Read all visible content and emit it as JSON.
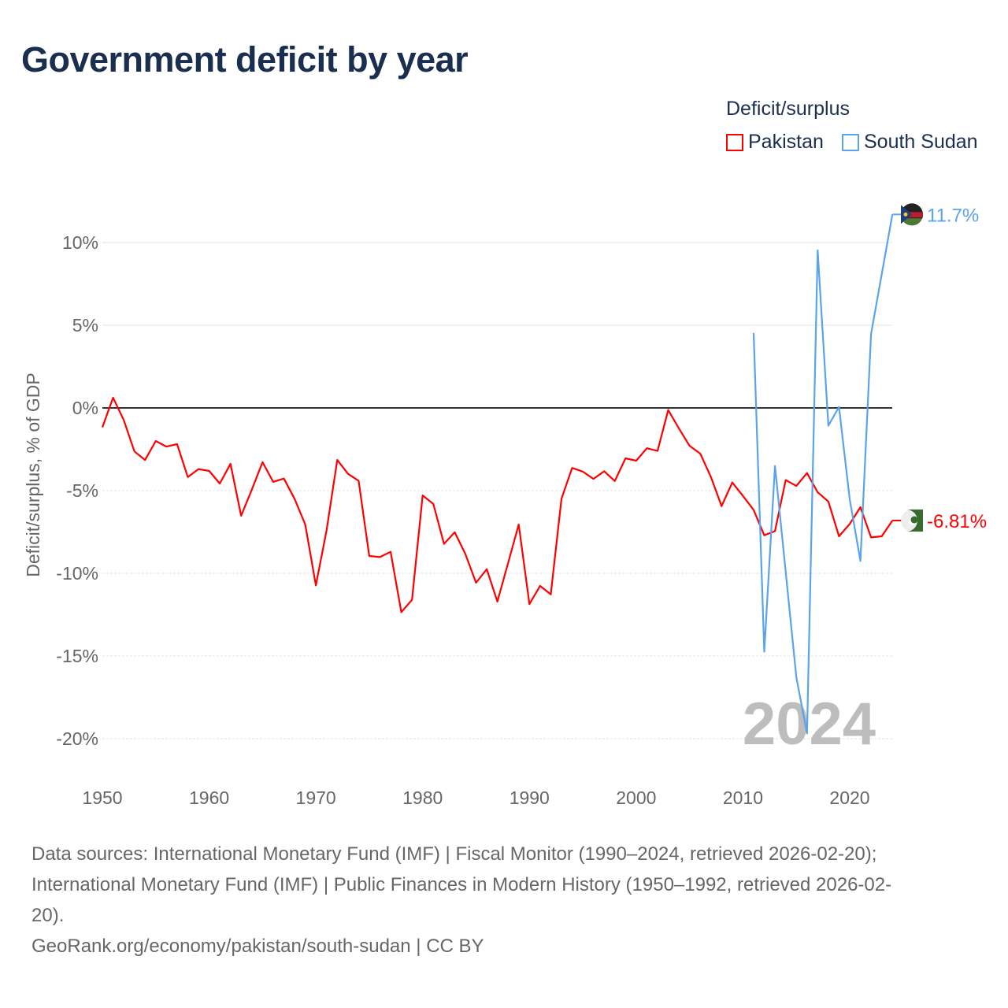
{
  "title": "Government deficit by year",
  "legend": {
    "title": "Deficit/surplus",
    "items": [
      {
        "name": "Pakistan",
        "color": "#ff0000"
      },
      {
        "name": "South Sudan",
        "color": "#5ba3ea"
      }
    ]
  },
  "year_label": "2024",
  "footer": {
    "line1": "Data sources: International Monetary Fund (IMF) | Fiscal Monitor (1990–2024, retrieved 2026-02-20);",
    "line2": "International Monetary Fund (IMF) | Public Finances in Modern History (1950–1992, retrieved 2026-02-",
    "line3": "20).",
    "line4": "GeoRank.org/economy/pakistan/south-sudan | CC BY"
  },
  "chart_data": {
    "type": "line",
    "title": "Government deficit by year",
    "xlabel": "",
    "ylabel": "Deficit/surplus, % of GDP",
    "xlim": [
      1950,
      2024
    ],
    "ylim": [
      -20,
      12
    ],
    "xticks": [
      1950,
      1960,
      1970,
      1980,
      1990,
      2000,
      2010,
      2020
    ],
    "xtick_labels": [
      "1950",
      "1960",
      "1970",
      "1980",
      "1990",
      "2000",
      "2010",
      "2020"
    ],
    "yticks": [
      10,
      5,
      0,
      -5,
      -10,
      -15,
      -20
    ],
    "ytick_labels": [
      "10%",
      "5%",
      "0%",
      "-5%",
      "-10%",
      "-15%",
      "-20%"
    ],
    "grid": true,
    "legend_position": "top-right",
    "series": [
      {
        "name": "Pakistan",
        "color": "#ff0000",
        "end_label": "-6.81%",
        "start_year": 1950,
        "values": [
          -1.17,
          0.62,
          -0.73,
          -2.63,
          -3.15,
          -2.0,
          -2.34,
          -2.19,
          -4.18,
          -3.7,
          -3.81,
          -4.57,
          -3.38,
          -6.52,
          -4.94,
          -3.28,
          -4.47,
          -4.27,
          -5.49,
          -7.05,
          -10.73,
          -7.4,
          -3.15,
          -3.98,
          -4.41,
          -8.95,
          -9.02,
          -8.7,
          -12.35,
          -11.6,
          -5.29,
          -5.81,
          -8.22,
          -7.52,
          -8.83,
          -10.57,
          -9.75,
          -11.71,
          -9.38,
          -7.05,
          -11.86,
          -10.76,
          -11.27,
          -5.49,
          -3.63,
          -3.85,
          -4.29,
          -3.83,
          -4.42,
          -3.05,
          -3.19,
          -2.44,
          -2.6,
          -0.13,
          -1.24,
          -2.29,
          -2.76,
          -4.18,
          -5.94,
          -4.51,
          -5.32,
          -6.17,
          -7.7,
          -7.45,
          -4.36,
          -4.72,
          -3.94,
          -5.1,
          -5.66,
          -7.76,
          -7.02,
          -6.0,
          -7.83,
          -7.76,
          -6.81
        ]
      },
      {
        "name": "South Sudan",
        "color": "#5ba3ea",
        "end_label": "11.7%",
        "start_year": 2011,
        "values": [
          4.53,
          -14.74,
          -3.51,
          -9.9,
          -16.28,
          -19.68,
          9.53,
          -1.07,
          0.06,
          -5.52,
          -9.25,
          4.47,
          8.1,
          11.7
        ]
      }
    ]
  }
}
